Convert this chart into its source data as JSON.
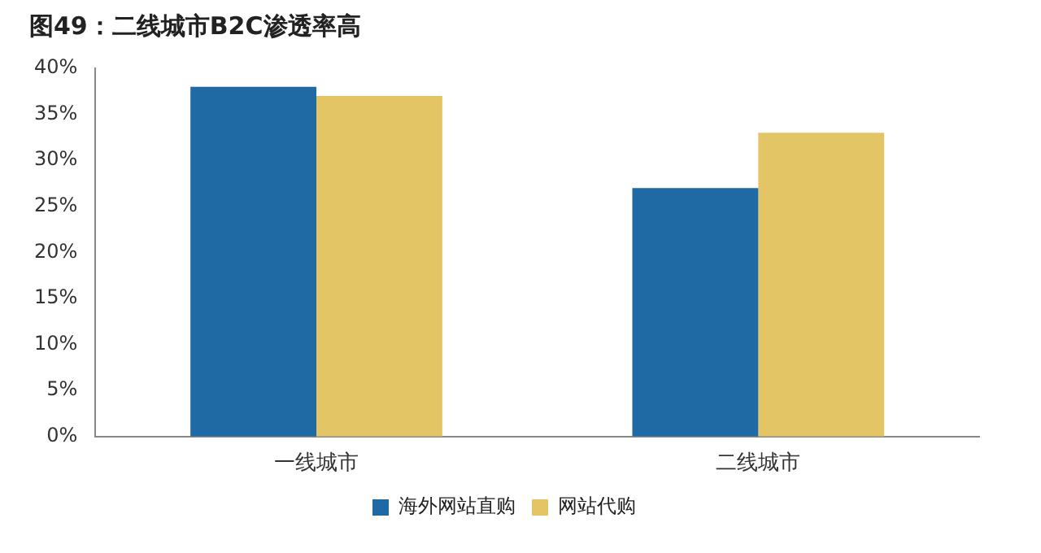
{
  "chart_data": {
    "type": "bar",
    "title": "图49：二线城市B2C渗透率高",
    "categories": [
      "一线城市",
      "二线城市"
    ],
    "series": [
      {
        "name": "海外网站直购",
        "color": "#1f6aa5",
        "values": [
          38,
          27
        ]
      },
      {
        "name": "网站代购",
        "color": "#e3c565",
        "values": [
          37,
          33
        ]
      }
    ],
    "ylim": [
      0,
      40
    ],
    "yticks": [
      {
        "value": 0,
        "label": "0%"
      },
      {
        "value": 5,
        "label": "5%"
      },
      {
        "value": 10,
        "label": "10%"
      },
      {
        "value": 15,
        "label": "15%"
      },
      {
        "value": 20,
        "label": "20%"
      },
      {
        "value": 25,
        "label": "25%"
      },
      {
        "value": 30,
        "label": "30%"
      },
      {
        "value": 35,
        "label": "35%"
      },
      {
        "value": 40,
        "label": "40%"
      }
    ],
    "grid": false,
    "legend": "bottom"
  }
}
